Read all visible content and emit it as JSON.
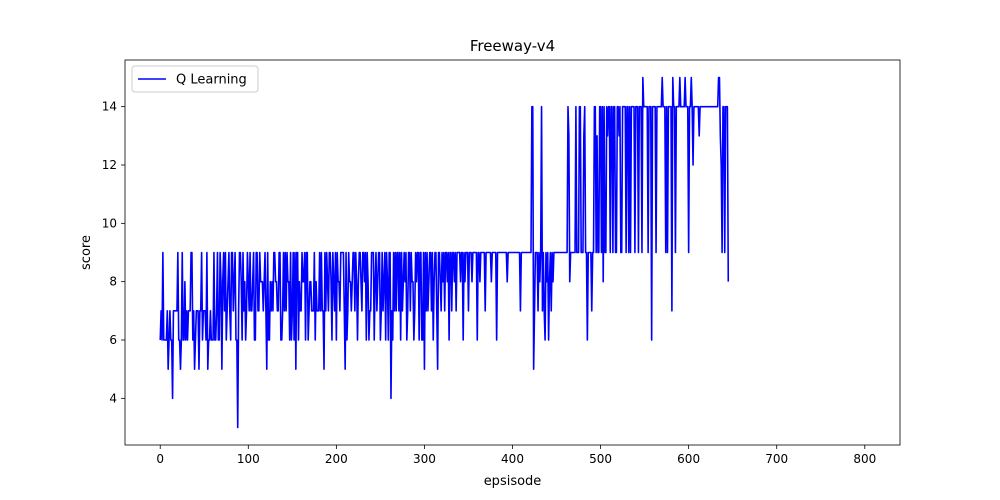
{
  "chart_data": {
    "type": "line",
    "title": "Freeway-v4",
    "xlabel": "epsisode",
    "ylabel": "score",
    "xlim": [
      -40,
      840
    ],
    "ylim": [
      2.4,
      15.6
    ],
    "xticks": [
      0,
      100,
      200,
      300,
      400,
      500,
      600,
      700,
      800
    ],
    "yticks": [
      4,
      6,
      8,
      10,
      12,
      14
    ],
    "grid": false,
    "legend": "top-left",
    "line_color": "#0000ff",
    "series": [
      {
        "name": "Q Learning",
        "x_start": 0,
        "x_step": 1,
        "values": [
          6,
          7,
          6,
          9,
          6,
          6,
          6,
          6,
          7,
          5,
          6,
          7,
          6,
          6,
          4,
          7,
          7,
          7,
          7,
          7,
          9,
          6,
          6,
          5,
          6,
          9,
          6,
          6,
          8,
          6,
          7,
          6,
          7,
          7,
          7,
          9,
          9,
          6,
          7,
          5,
          6,
          7,
          7,
          7,
          5,
          7,
          7,
          9,
          6,
          7,
          7,
          7,
          6,
          9,
          5,
          6,
          6,
          7,
          6,
          6,
          6,
          9,
          6,
          6,
          7,
          9,
          6,
          6,
          9,
          8,
          5,
          8,
          9,
          7,
          9,
          6,
          7,
          8,
          9,
          7,
          6,
          9,
          9,
          7,
          8,
          9,
          6,
          6,
          3,
          7,
          9,
          9,
          8,
          6,
          9,
          7,
          8,
          6,
          7,
          9,
          8,
          7,
          9,
          7,
          7,
          8,
          9,
          6,
          6,
          9,
          9,
          7,
          7,
          9,
          8,
          8,
          8,
          7,
          8,
          9,
          7,
          5,
          9,
          6,
          6,
          8,
          7,
          8,
          7,
          9,
          9,
          8,
          8,
          7,
          7,
          9,
          9,
          6,
          6,
          7,
          9,
          7,
          9,
          7,
          9,
          8,
          8,
          6,
          9,
          6,
          7,
          9,
          6,
          9,
          5,
          9,
          9,
          6,
          8,
          7,
          7,
          9,
          8,
          8,
          9,
          6,
          9,
          9,
          6,
          7,
          8,
          8,
          7,
          7,
          7,
          9,
          6,
          8,
          7,
          7,
          7,
          9,
          7,
          9,
          7,
          7,
          5,
          9,
          7,
          9,
          8,
          7,
          9,
          9,
          8,
          6,
          9,
          8,
          7,
          9,
          6,
          9,
          8,
          8,
          7,
          9,
          9,
          9,
          9,
          7,
          5,
          9,
          6,
          7,
          9,
          8,
          8,
          7,
          8,
          9,
          9,
          7,
          9,
          8,
          6,
          8,
          9,
          9,
          8,
          7,
          9,
          9,
          8,
          9,
          6,
          9,
          8,
          6,
          7,
          7,
          9,
          9,
          9,
          6,
          8,
          9,
          7,
          8,
          9,
          9,
          6,
          7,
          9,
          7,
          8,
          9,
          6,
          9,
          8,
          6,
          9,
          9,
          4,
          7,
          6,
          9,
          7,
          9,
          7,
          9,
          9,
          7,
          9,
          6,
          9,
          7,
          8,
          9,
          8,
          9,
          6,
          7,
          9,
          9,
          7,
          9,
          8,
          8,
          6,
          7,
          9,
          8,
          9,
          9,
          6,
          9,
          9,
          6,
          6,
          9,
          5,
          9,
          7,
          9,
          7,
          8,
          9,
          9,
          7,
          9,
          6,
          8,
          9,
          9,
          7,
          5,
          9,
          9,
          8,
          7,
          9,
          8,
          9,
          7,
          9,
          9,
          8,
          9,
          6,
          9,
          9,
          7,
          9,
          9,
          8,
          9,
          7,
          9,
          9,
          9,
          9,
          8,
          9,
          9,
          6,
          9,
          8,
          9,
          9,
          9,
          7,
          9,
          9,
          9,
          8,
          9,
          9,
          9,
          9,
          9,
          6,
          9,
          9,
          8,
          9,
          9,
          9,
          9,
          9,
          7,
          9,
          9,
          9,
          9,
          9,
          9,
          8,
          9,
          9,
          9,
          9,
          9,
          6,
          9,
          9,
          9,
          9,
          9,
          9,
          9,
          9,
          9,
          9,
          9,
          8,
          9,
          9,
          9,
          9,
          9,
          9,
          9,
          9,
          9,
          9,
          9,
          9,
          9,
          9,
          7,
          9,
          9,
          9,
          9,
          9,
          9,
          9,
          9,
          9,
          9,
          9,
          9,
          14,
          14,
          5,
          7,
          9,
          9,
          9,
          7,
          9,
          8,
          9,
          14,
          7,
          9,
          7,
          6,
          9,
          8,
          9,
          6,
          8,
          9,
          7,
          9,
          8,
          9,
          9,
          9,
          9,
          9,
          9,
          9,
          9,
          9,
          9,
          9,
          9,
          9,
          9,
          9,
          9,
          14,
          13,
          8,
          9,
          9,
          9,
          9,
          9,
          9,
          14,
          9,
          9,
          9,
          14,
          14,
          9,
          9,
          9,
          13,
          14,
          9,
          9,
          6,
          9,
          9,
          9,
          9,
          7,
          9,
          9,
          14,
          14,
          9,
          13,
          9,
          9,
          14,
          14,
          9,
          14,
          8,
          14,
          9,
          9,
          14,
          13,
          14,
          14,
          9,
          14,
          14,
          9,
          14,
          14,
          9,
          9,
          14,
          14,
          13,
          14,
          9,
          9,
          14,
          14,
          14,
          14,
          9,
          14,
          14,
          9,
          14,
          9,
          14,
          14,
          14,
          14,
          9,
          14,
          14,
          14,
          9,
          14,
          14,
          14,
          9,
          15,
          14,
          14,
          14,
          14,
          14,
          9,
          14,
          14,
          14,
          6,
          14,
          14,
          14,
          14,
          9,
          14,
          14,
          14,
          14,
          14,
          14,
          15,
          14,
          14,
          14,
          9,
          14,
          9,
          14,
          14,
          14,
          14,
          7,
          15,
          14,
          14,
          9,
          14,
          14,
          14,
          14,
          15,
          14,
          14,
          14,
          14,
          14,
          15,
          14,
          14,
          14,
          9,
          14,
          14,
          15,
          14,
          12,
          14,
          14,
          14,
          14,
          14,
          14,
          13,
          14,
          14,
          14,
          14,
          14,
          14,
          14,
          14,
          14,
          14,
          14,
          14,
          14,
          14,
          14,
          14,
          14,
          14,
          14,
          14,
          14,
          15,
          15,
          13,
          12,
          9,
          14,
          14,
          9,
          14,
          14,
          14,
          8
        ]
      }
    ]
  }
}
